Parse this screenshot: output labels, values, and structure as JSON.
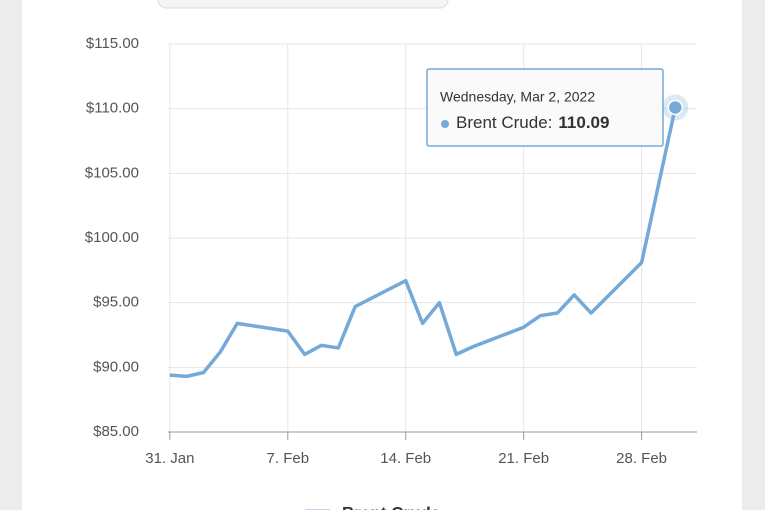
{
  "chart_data": {
    "type": "line",
    "x": [
      "2022-01-31",
      "2022-02-01",
      "2022-02-02",
      "2022-02-03",
      "2022-02-04",
      "2022-02-07",
      "2022-02-08",
      "2022-02-09",
      "2022-02-10",
      "2022-02-11",
      "2022-02-14",
      "2022-02-15",
      "2022-02-16",
      "2022-02-17",
      "2022-02-18",
      "2022-02-21",
      "2022-02-22",
      "2022-02-23",
      "2022-02-24",
      "2022-02-25",
      "2022-02-28",
      "2022-03-02"
    ],
    "series": [
      {
        "name": "Brent Crude",
        "color": "#74a9d8",
        "values": [
          89.4,
          89.3,
          89.6,
          91.2,
          93.4,
          92.8,
          91.0,
          91.7,
          91.5,
          94.7,
          96.7,
          93.4,
          95.0,
          91.0,
          91.6,
          93.1,
          94.0,
          94.2,
          95.6,
          94.2,
          98.1,
          110.09
        ]
      }
    ],
    "xlim": [
      "2022-01-30",
      "2022-03-04"
    ],
    "xticks": [
      {
        "value": "2022-01-31",
        "label": "31. Jan"
      },
      {
        "value": "2022-02-07",
        "label": "7. Feb"
      },
      {
        "value": "2022-02-14",
        "label": "14. Feb"
      },
      {
        "value": "2022-02-21",
        "label": "21. Feb"
      },
      {
        "value": "2022-02-28",
        "label": "28. Feb"
      }
    ],
    "ylim": [
      85,
      115
    ],
    "yticks": [
      {
        "value": 85,
        "label": "$85.00"
      },
      {
        "value": 90,
        "label": "$90.00"
      },
      {
        "value": 95,
        "label": "$95.00"
      },
      {
        "value": 100,
        "label": "$100.00"
      },
      {
        "value": 105,
        "label": "$105.00"
      },
      {
        "value": 110,
        "label": "$110.00"
      },
      {
        "value": 115,
        "label": "$115.00"
      }
    ],
    "grid": true,
    "tooltip": {
      "title": "Wednesday, Mar 2, 2022",
      "label": "Brent Crude:"
    }
  }
}
